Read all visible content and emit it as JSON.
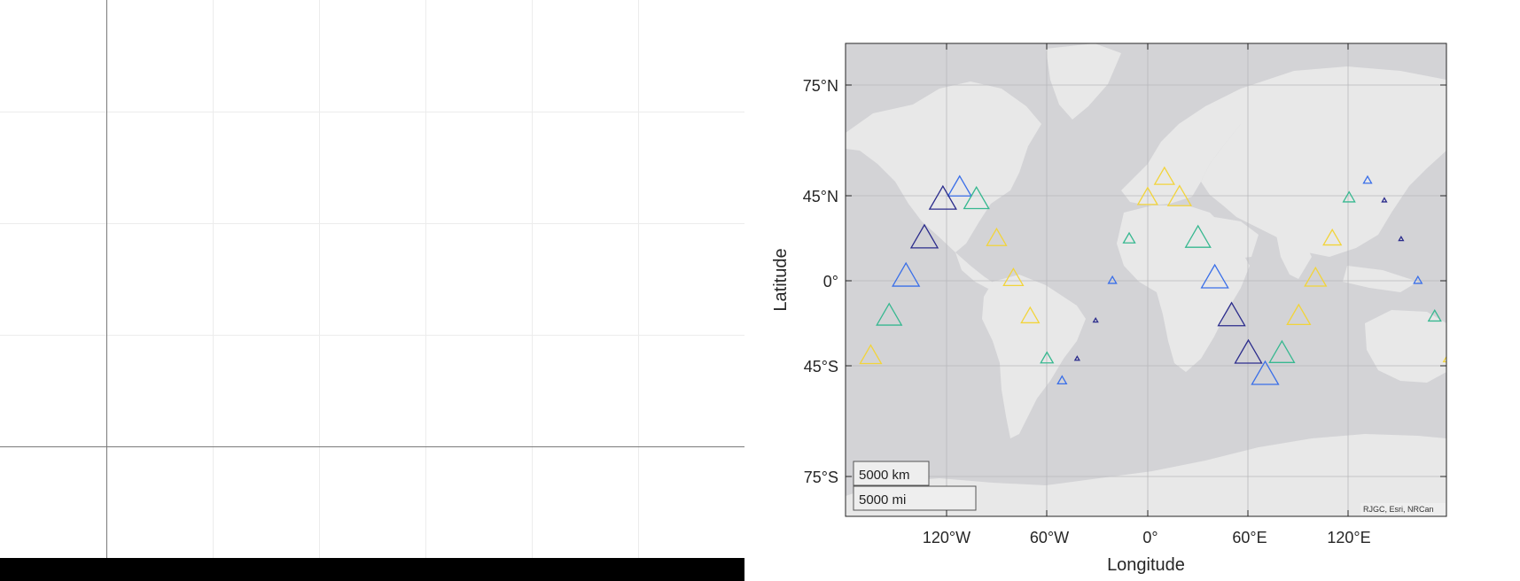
{
  "left_axes": {
    "name": "empty-axes"
  },
  "map": {
    "lon_ticks": [
      "120°W",
      "60°W",
      "0°",
      "60°E",
      "120°E"
    ],
    "lat_ticks": [
      "75°N",
      "45°N",
      "0°",
      "45°S",
      "75°S"
    ],
    "xlabel": "Longitude",
    "ylabel": "Latitude",
    "attribution": "RJGC, Esri, NRCan",
    "scalebar": {
      "km_label": "5000 km",
      "mi_label": "5000 mi"
    },
    "colors": {
      "land": "#e8e8e8",
      "ocean": "#d3d3d6",
      "series_dark": "#2b2c8c",
      "series_blue": "#3a6fe8",
      "series_green": "#37b890",
      "series_yellow": "#f2d43a"
    },
    "markers": [
      {
        "lon": -122,
        "lat": 48,
        "size": 26,
        "color": "series_blue"
      },
      {
        "lon": -132,
        "lat": 43,
        "size": 30,
        "color": "series_dark"
      },
      {
        "lon": -112,
        "lat": 43,
        "size": 28,
        "color": "series_green"
      },
      {
        "lon": -143,
        "lat": 24,
        "size": 30,
        "color": "series_dark"
      },
      {
        "lon": -100,
        "lat": 24,
        "size": 22,
        "color": "series_yellow"
      },
      {
        "lon": -154,
        "lat": 2,
        "size": 30,
        "color": "series_blue"
      },
      {
        "lon": -90,
        "lat": 1,
        "size": 22,
        "color": "series_yellow"
      },
      {
        "lon": -164,
        "lat": -21,
        "size": 28,
        "color": "series_green"
      },
      {
        "lon": -80,
        "lat": -21,
        "size": 20,
        "color": "series_yellow"
      },
      {
        "lon": -175,
        "lat": -41,
        "size": 24,
        "color": "series_yellow"
      },
      {
        "lon": -70,
        "lat": -42,
        "size": 14,
        "color": "series_green"
      },
      {
        "lon": -61,
        "lat": -51,
        "size": 10,
        "color": "series_blue"
      },
      {
        "lon": -52,
        "lat": -42,
        "size": 5,
        "color": "series_dark"
      },
      {
        "lon": -41,
        "lat": -23,
        "size": 5,
        "color": "series_dark"
      },
      {
        "lon": -31,
        "lat": 0,
        "size": 9,
        "color": "series_blue"
      },
      {
        "lon": -21,
        "lat": 24,
        "size": 13,
        "color": "series_green"
      },
      {
        "lon": -10,
        "lat": 44,
        "size": 22,
        "color": "series_yellow"
      },
      {
        "lon": 0,
        "lat": 52,
        "size": 22,
        "color": "series_yellow"
      },
      {
        "lon": 9,
        "lat": 44,
        "size": 26,
        "color": "series_yellow"
      },
      {
        "lon": 20,
        "lat": 24,
        "size": 28,
        "color": "series_green"
      },
      {
        "lon": 30,
        "lat": 1,
        "size": 30,
        "color": "series_blue"
      },
      {
        "lon": 40,
        "lat": -21,
        "size": 30,
        "color": "series_dark"
      },
      {
        "lon": 50,
        "lat": -40,
        "size": 30,
        "color": "series_dark"
      },
      {
        "lon": 60,
        "lat": -49,
        "size": 30,
        "color": "series_blue"
      },
      {
        "lon": 70,
        "lat": -40,
        "size": 28,
        "color": "series_green"
      },
      {
        "lon": 80,
        "lat": -21,
        "size": 26,
        "color": "series_yellow"
      },
      {
        "lon": 90,
        "lat": 1,
        "size": 24,
        "color": "series_yellow"
      },
      {
        "lon": 100,
        "lat": 24,
        "size": 20,
        "color": "series_yellow"
      },
      {
        "lon": 110,
        "lat": 44,
        "size": 13,
        "color": "series_green"
      },
      {
        "lon": 121,
        "lat": 51,
        "size": 9,
        "color": "series_blue"
      },
      {
        "lon": 131,
        "lat": 43,
        "size": 5,
        "color": "series_dark"
      },
      {
        "lon": 141,
        "lat": 24,
        "size": 5,
        "color": "series_dark"
      },
      {
        "lon": 151,
        "lat": 0,
        "size": 9,
        "color": "series_blue"
      },
      {
        "lon": 161,
        "lat": -21,
        "size": 14,
        "color": "series_green"
      },
      {
        "lon": 171,
        "lat": -41,
        "size": 18,
        "color": "series_yellow"
      }
    ]
  }
}
